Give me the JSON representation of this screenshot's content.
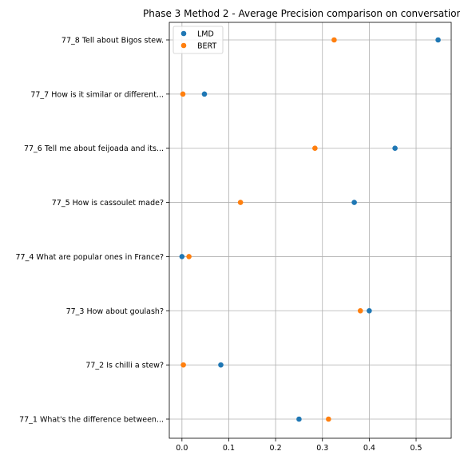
{
  "chart_data": {
    "type": "scatter",
    "title": "Phase 3 Method 2 - Average Precision comparison on conversation",
    "xlabel": "",
    "ylabel": "",
    "xlim": [
      -0.027,
      0.575
    ],
    "x_ticks": [
      "0.0",
      "0.1",
      "0.2",
      "0.3",
      "0.4",
      "0.5"
    ],
    "x_tick_values": [
      0.0,
      0.1,
      0.2,
      0.3,
      0.4,
      0.5
    ],
    "grid": true,
    "legend_placement": "upper-left",
    "categories": [
      "77_1 What's the difference between...",
      "77_2 Is chilli a stew?",
      "77_3 How about goulash?",
      "77_4 What are popular ones in France?",
      "77_5 How is cassoulet made?",
      "77_6 Tell me about feijoada and its...",
      "77_7 How is it similar or different...",
      "77_8 Tell about Bigos stew."
    ],
    "series": [
      {
        "name": "LMD",
        "color": "#1f77b4",
        "values": [
          0.25,
          0.083,
          0.4,
          0.0,
          0.368,
          0.455,
          0.048,
          0.547
        ]
      },
      {
        "name": "BERT",
        "color": "#ff7f0e",
        "values": [
          0.313,
          0.003,
          0.381,
          0.015,
          0.125,
          0.284,
          0.002,
          0.325
        ]
      }
    ]
  }
}
